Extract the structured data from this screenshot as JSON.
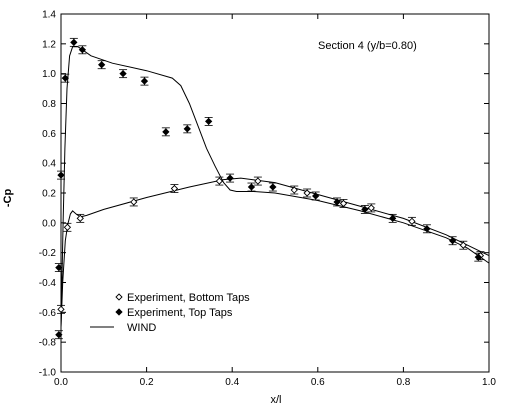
{
  "chart_data": {
    "type": "scatter",
    "annotation": "Section 4 (y/b=0.80)",
    "xlabel": "x/l",
    "ylabel": "-Cp",
    "xlim": [
      0.0,
      1.0
    ],
    "ylim": [
      -1.0,
      1.4
    ],
    "xticks": [
      0.0,
      0.2,
      0.4,
      0.6,
      0.8,
      1.0
    ],
    "yticks": [
      -1.0,
      -0.8,
      -0.6,
      -0.4,
      -0.2,
      0.0,
      0.2,
      0.4,
      0.6,
      0.8,
      1.0,
      1.2,
      1.4
    ],
    "x_tick_labels": [
      "0.0",
      "0.2",
      "0.4",
      "0.6",
      "0.8",
      "1.0"
    ],
    "y_tick_labels": [
      "-1.0",
      "-0.8",
      "-0.6",
      "-0.4",
      "-0.2",
      "0.0",
      "0.2",
      "0.4",
      "0.6",
      "0.8",
      "1.0",
      "1.2",
      "1.4"
    ],
    "grid": false,
    "legend_position": "lower-left",
    "series": [
      {
        "name": "Experiment, Bottom Taps",
        "marker": "open-diamond",
        "errorbars": true,
        "points": [
          [
            0.0,
            -0.58
          ],
          [
            0.015,
            -0.03
          ],
          [
            0.045,
            0.03
          ],
          [
            0.17,
            0.14
          ],
          [
            0.265,
            0.23
          ],
          [
            0.37,
            0.28
          ],
          [
            0.46,
            0.28
          ],
          [
            0.545,
            0.22
          ],
          [
            0.575,
            0.2
          ],
          [
            0.66,
            0.13
          ],
          [
            0.725,
            0.1
          ],
          [
            0.82,
            0.01
          ],
          [
            0.94,
            -0.15
          ],
          [
            0.98,
            -0.22
          ]
        ]
      },
      {
        "name": "Experiment, Top Taps",
        "marker": "filled-diamond",
        "errorbars": true,
        "points": [
          [
            -0.005,
            -0.75
          ],
          [
            -0.005,
            -0.3
          ],
          [
            0.0,
            0.32
          ],
          [
            0.01,
            0.97
          ],
          [
            0.03,
            1.21
          ],
          [
            0.05,
            1.16
          ],
          [
            0.095,
            1.06
          ],
          [
            0.145,
            1.0
          ],
          [
            0.195,
            0.95
          ],
          [
            0.245,
            0.61
          ],
          [
            0.295,
            0.63
          ],
          [
            0.345,
            0.68
          ],
          [
            0.395,
            0.3
          ],
          [
            0.445,
            0.24
          ],
          [
            0.495,
            0.24
          ],
          [
            0.595,
            0.18
          ],
          [
            0.645,
            0.14
          ],
          [
            0.71,
            0.09
          ],
          [
            0.775,
            0.03
          ],
          [
            0.855,
            -0.04
          ],
          [
            0.915,
            -0.12
          ],
          [
            0.975,
            -0.23
          ]
        ]
      },
      {
        "name": "WIND",
        "style": "line",
        "lines": [
          [
            [
              0.0,
              -0.7
            ],
            [
              0.002,
              -0.4
            ],
            [
              0.005,
              0.0
            ],
            [
              0.009,
              0.5
            ],
            [
              0.014,
              0.9
            ],
            [
              0.02,
              1.12
            ],
            [
              0.027,
              1.18
            ],
            [
              0.04,
              1.18
            ],
            [
              0.07,
              1.12
            ],
            [
              0.12,
              1.07
            ],
            [
              0.2,
              1.02
            ],
            [
              0.26,
              0.97
            ],
            [
              0.28,
              0.92
            ],
            [
              0.3,
              0.8
            ],
            [
              0.32,
              0.65
            ],
            [
              0.34,
              0.5
            ],
            [
              0.36,
              0.38
            ],
            [
              0.38,
              0.27
            ],
            [
              0.395,
              0.22
            ],
            [
              0.41,
              0.21
            ],
            [
              0.45,
              0.21
            ],
            [
              0.5,
              0.2
            ],
            [
              0.6,
              0.15
            ],
            [
              0.7,
              0.08
            ],
            [
              0.8,
              0.0
            ],
            [
              0.85,
              -0.05
            ],
            [
              0.9,
              -0.1
            ],
            [
              0.95,
              -0.17
            ],
            [
              1.0,
              -0.27
            ]
          ],
          [
            [
              0.0,
              -0.7
            ],
            [
              0.004,
              -0.4
            ],
            [
              0.01,
              -0.12
            ],
            [
              0.016,
              -0.01
            ],
            [
              0.022,
              0.06
            ],
            [
              0.027,
              0.08
            ],
            [
              0.035,
              0.06
            ],
            [
              0.045,
              0.04
            ],
            [
              0.06,
              0.05
            ],
            [
              0.1,
              0.09
            ],
            [
              0.2,
              0.17
            ],
            [
              0.3,
              0.24
            ],
            [
              0.38,
              0.29
            ],
            [
              0.42,
              0.3
            ],
            [
              0.5,
              0.27
            ],
            [
              0.6,
              0.19
            ],
            [
              0.7,
              0.11
            ],
            [
              0.8,
              0.03
            ],
            [
              0.9,
              -0.08
            ],
            [
              1.0,
              -0.22
            ]
          ]
        ]
      }
    ]
  }
}
